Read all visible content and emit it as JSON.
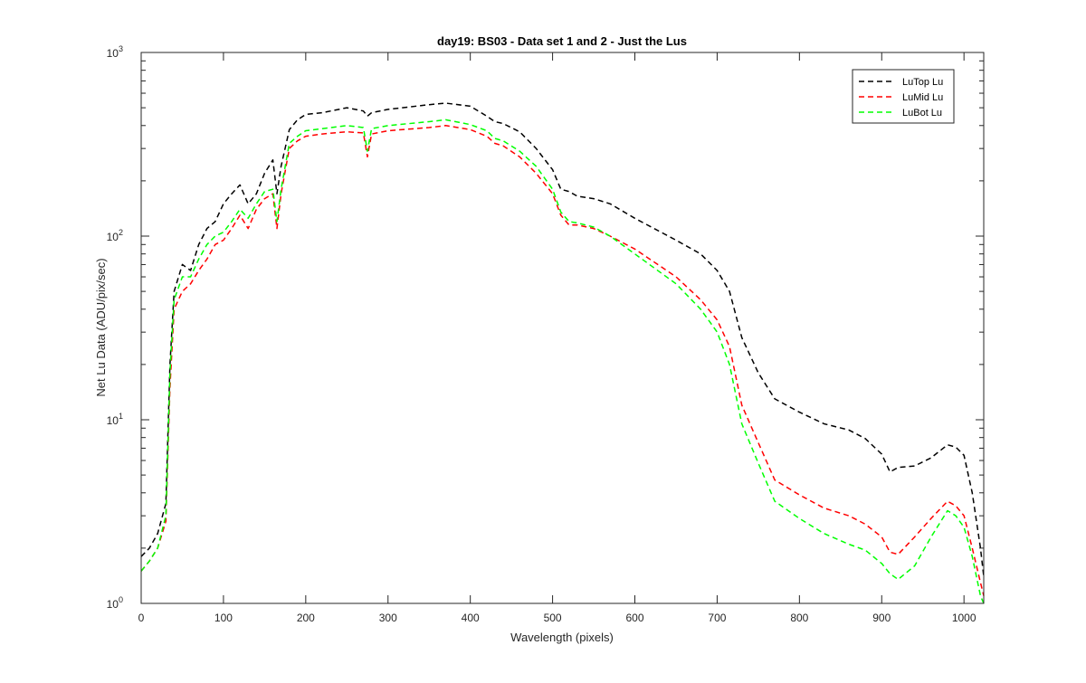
{
  "chart_data": {
    "type": "line",
    "title": "day19: BS03 - Data set 1 and 2 - Just the Lus",
    "xlabel": "Wavelength (pixels)",
    "ylabel": "Net Lu Data (ADU/pix/sec)",
    "xlim": [
      0,
      1024
    ],
    "ylim": [
      1,
      1000
    ],
    "yscale": "log",
    "grid": false,
    "legend_position": "top-right",
    "x_ticks": [
      0,
      100,
      200,
      300,
      400,
      500,
      600,
      700,
      800,
      900,
      1000
    ],
    "y_ticks": [
      {
        "base": "10",
        "exp": "0",
        "value": 1
      },
      {
        "base": "10",
        "exp": "1",
        "value": 10
      },
      {
        "base": "10",
        "exp": "2",
        "value": 100
      },
      {
        "base": "10",
        "exp": "3",
        "value": 1000
      }
    ],
    "x": [
      0,
      10,
      20,
      30,
      35,
      40,
      50,
      60,
      70,
      80,
      90,
      100,
      110,
      120,
      130,
      140,
      150,
      160,
      165,
      170,
      180,
      190,
      200,
      220,
      250,
      270,
      275,
      280,
      300,
      350,
      370,
      400,
      420,
      430,
      440,
      460,
      480,
      500,
      510,
      520,
      530,
      550,
      570,
      600,
      650,
      680,
      700,
      715,
      730,
      750,
      770,
      800,
      830,
      860,
      880,
      900,
      910,
      920,
      940,
      960,
      980,
      990,
      1000,
      1010,
      1020,
      1024
    ],
    "series": [
      {
        "name": "LuTop  Lu",
        "color": "#000000",
        "values": [
          1.8,
          2.0,
          2.4,
          3.5,
          20,
          50,
          70,
          65,
          90,
          110,
          120,
          150,
          170,
          190,
          150,
          170,
          220,
          260,
          170,
          240,
          380,
          430,
          460,
          470,
          500,
          480,
          450,
          470,
          490,
          520,
          530,
          510,
          450,
          420,
          410,
          370,
          300,
          230,
          180,
          175,
          165,
          160,
          150,
          125,
          95,
          80,
          65,
          50,
          28,
          18,
          13,
          11,
          9.5,
          8.8,
          7.9,
          6.5,
          5.2,
          5.5,
          5.6,
          6.2,
          7.3,
          7.1,
          6.4,
          4.0,
          2.0,
          1.4
        ]
      },
      {
        "name": "LuMid  Lu",
        "color": "#ff0000",
        "values": [
          1.5,
          1.7,
          2.0,
          2.8,
          15,
          40,
          50,
          55,
          65,
          75,
          90,
          95,
          110,
          130,
          110,
          140,
          160,
          170,
          110,
          170,
          300,
          330,
          350,
          360,
          370,
          365,
          270,
          360,
          375,
          390,
          400,
          380,
          350,
          320,
          310,
          270,
          220,
          170,
          130,
          115,
          115,
          110,
          100,
          85,
          60,
          45,
          35,
          25,
          12,
          7.5,
          4.7,
          3.9,
          3.3,
          3.0,
          2.7,
          2.3,
          1.9,
          1.85,
          2.3,
          2.9,
          3.6,
          3.4,
          3.0,
          2.0,
          1.3,
          1.1
        ]
      },
      {
        "name": "LuBot  Lu",
        "color": "#00ff00",
        "values": [
          1.5,
          1.7,
          2.0,
          3.0,
          18,
          45,
          60,
          60,
          75,
          90,
          100,
          105,
          120,
          140,
          125,
          150,
          175,
          180,
          120,
          180,
          320,
          350,
          375,
          385,
          400,
          390,
          290,
          385,
          400,
          420,
          430,
          405,
          375,
          340,
          330,
          290,
          240,
          180,
          135,
          120,
          118,
          112,
          100,
          80,
          55,
          40,
          30,
          20,
          9.5,
          5.8,
          3.6,
          2.9,
          2.4,
          2.1,
          1.95,
          1.65,
          1.45,
          1.35,
          1.6,
          2.3,
          3.2,
          3.0,
          2.6,
          1.8,
          1.1,
          1.0
        ]
      }
    ]
  }
}
